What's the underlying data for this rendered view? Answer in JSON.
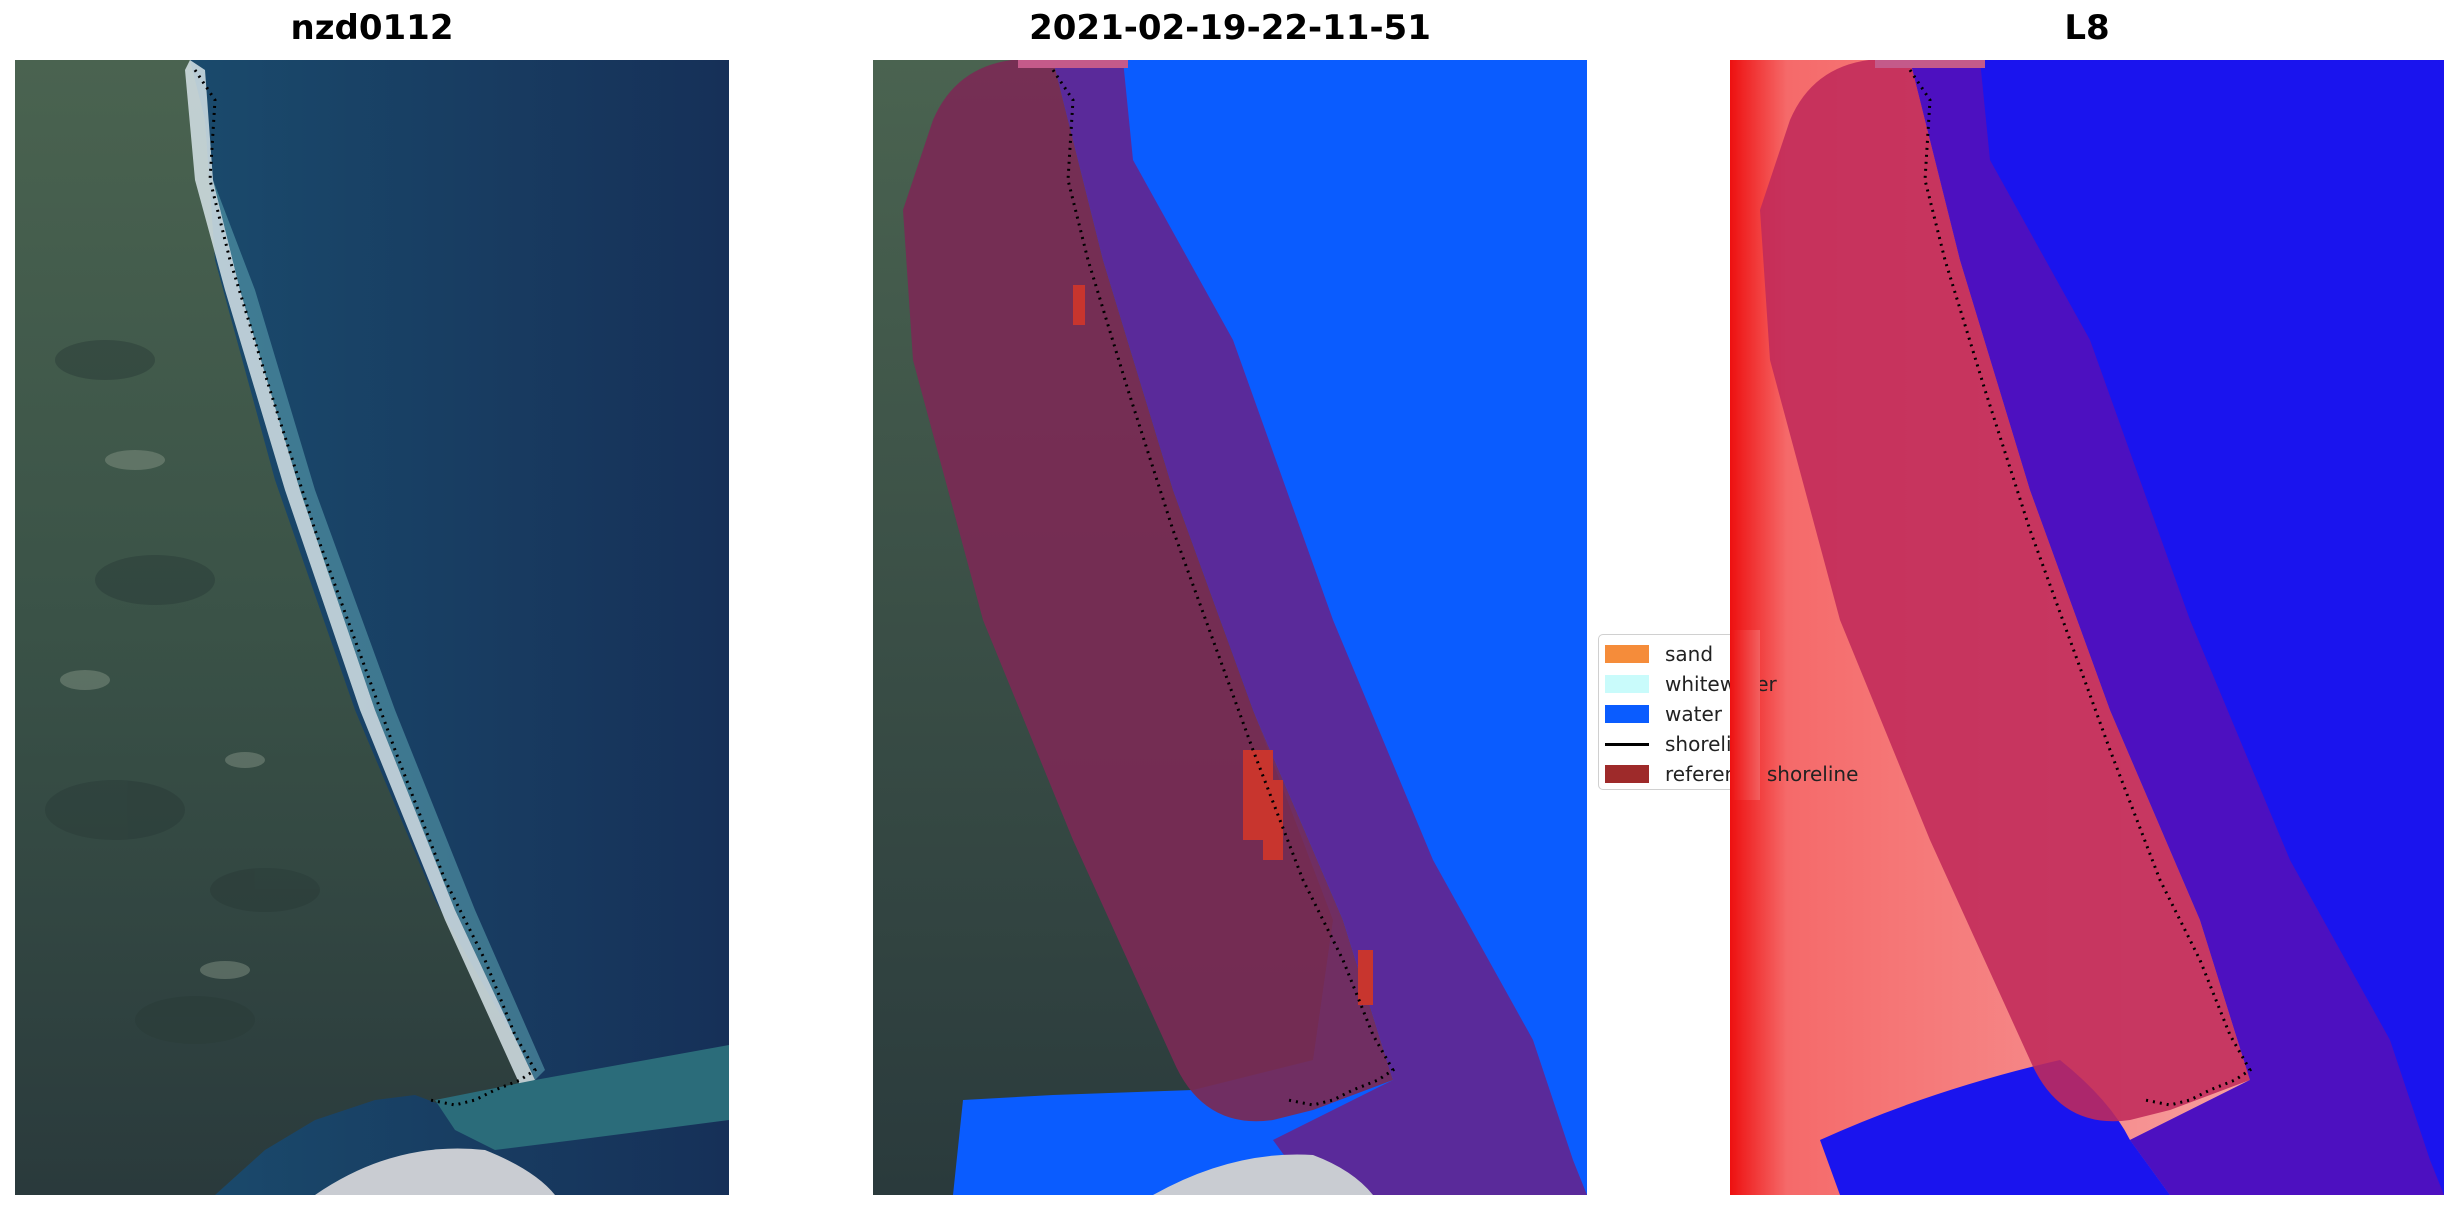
{
  "panels": [
    {
      "title": "nzd0112"
    },
    {
      "title": "2021-02-19-22-11-51"
    },
    {
      "title": "L8"
    }
  ],
  "legend": {
    "items": [
      {
        "label": "sand",
        "color": "#f58c3a",
        "kind": "patch"
      },
      {
        "label": "whitewater",
        "color": "#c9fbfb",
        "kind": "patch"
      },
      {
        "label": "water",
        "color": "#0a5cff",
        "kind": "patch"
      },
      {
        "label": "shoreline",
        "color": "#000000",
        "kind": "line"
      },
      {
        "label": "reference shoreline",
        "color": "#9e2a2a",
        "kind": "patch"
      }
    ]
  },
  "colors": {
    "ocean_dark": "#173058",
    "ocean_mid": "#1c5a77",
    "land_green": "#3b5548",
    "land_dark": "#2b3d3c",
    "beach": "#d6e3e8",
    "buffer_purple": "#5a2a9a",
    "buffer_land": "#7a2a55",
    "water_blue": "#0a5cff",
    "mndwi_water": "#1a14ee",
    "mndwi_land": "#f3a3a3",
    "mndwi_buffer": "#c02a5a"
  }
}
